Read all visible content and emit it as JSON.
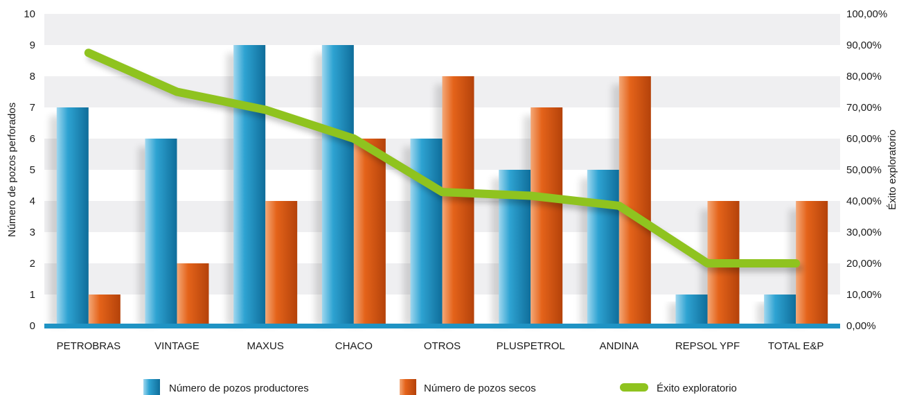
{
  "chart_data": {
    "type": "bar",
    "categories": [
      "PETROBRAS",
      "VINTAGE",
      "MAXUS",
      "CHACO",
      "OTROS",
      "PLUSPETROL",
      "ANDINA",
      "REPSOL YPF",
      "TOTAL E&P"
    ],
    "series": [
      {
        "name": "Número de pozos productores",
        "type": "bar",
        "axis": "left",
        "color": "#1f93c4",
        "values": [
          7,
          6,
          9,
          9,
          6,
          5,
          5,
          1,
          1
        ]
      },
      {
        "name": "Número de pozos secos",
        "type": "bar",
        "axis": "left",
        "color": "#de5a0e",
        "values": [
          1,
          2,
          4,
          6,
          8,
          7,
          8,
          4,
          4
        ]
      },
      {
        "name": "Éxito exploratorio",
        "type": "line",
        "axis": "right",
        "color": "#8fc31f",
        "values": [
          0.875,
          0.75,
          0.6923,
          0.6,
          0.4286,
          0.4167,
          0.3846,
          0.2,
          0.2
        ]
      }
    ],
    "ylabel": "Número de pozos perforados",
    "y2label": "Éxito exploratorio",
    "ylim": [
      0,
      10
    ],
    "y2lim": [
      0,
      1
    ],
    "yticks": [
      "0",
      "1",
      "2",
      "3",
      "4",
      "5",
      "6",
      "7",
      "8",
      "9",
      "10"
    ],
    "y2ticks": [
      "0,00%",
      "10,00%",
      "20,00%",
      "30,00%",
      "40,00%",
      "50,00%",
      "60,00%",
      "70,00%",
      "80,00%",
      "90,00%",
      "100,00%"
    ],
    "grid": "alternating-bands",
    "legend_position": "bottom"
  }
}
